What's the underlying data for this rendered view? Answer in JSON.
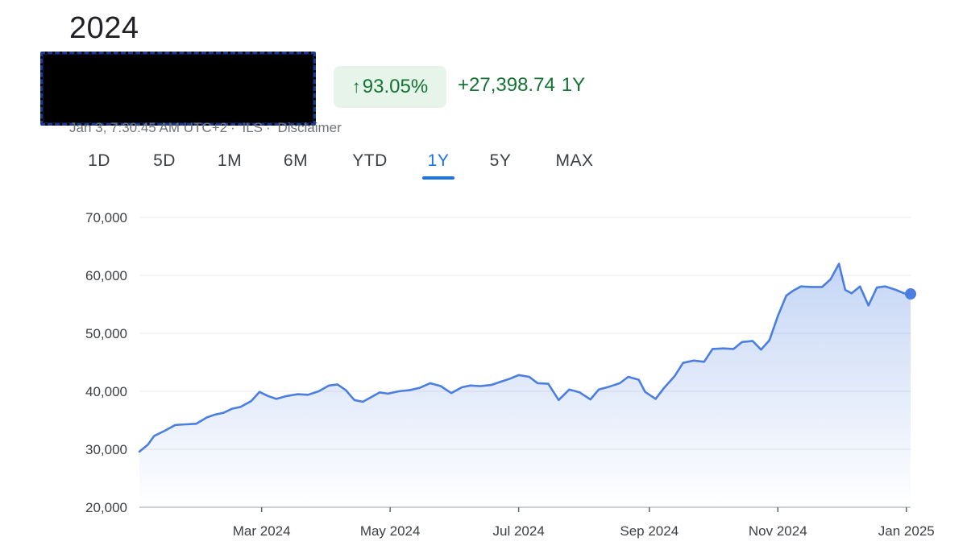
{
  "header": {
    "title": "2024",
    "percent_change": "93.05%",
    "arrow_icon": "arrow-up-icon",
    "absolute_change": "+27,398.74",
    "period_label": "1Y",
    "timestamp": "Jan 3, 7:30:45 AM UTC+2",
    "currency": "ILS",
    "disclaimer": "Disclaimer",
    "separator": "·"
  },
  "colors": {
    "accent": "#1a73e8",
    "line": "#4a7ee0",
    "positive": "#137333",
    "positive_bg": "#e6f4ea"
  },
  "tabs": [
    {
      "label": "1D",
      "active": false
    },
    {
      "label": "5D",
      "active": false
    },
    {
      "label": "1M",
      "active": false
    },
    {
      "label": "6M",
      "active": false
    },
    {
      "label": "YTD",
      "active": false
    },
    {
      "label": "1Y",
      "active": true
    },
    {
      "label": "5Y",
      "active": false
    },
    {
      "label": "MAX",
      "active": false
    }
  ],
  "chart_data": {
    "type": "area",
    "title": "",
    "xlabel": "",
    "ylabel": "",
    "ylim": [
      20000,
      70000
    ],
    "xlim": [
      "2024-01-03",
      "2025-01-03"
    ],
    "y_ticks": [
      "70,000",
      "60,000",
      "50,000",
      "40,000",
      "30,000",
      "20,000"
    ],
    "y_tick_values": [
      70000,
      60000,
      50000,
      40000,
      30000,
      20000
    ],
    "x_ticks": [
      {
        "label": "Mar 2024",
        "date": "2024-03-01"
      },
      {
        "label": "May 2024",
        "date": "2024-05-01"
      },
      {
        "label": "Jul 2024",
        "date": "2024-07-01"
      },
      {
        "label": "Sep 2024",
        "date": "2024-09-01"
      },
      {
        "label": "Nov 2024",
        "date": "2024-11-01"
      },
      {
        "label": "Jan 2025",
        "date": "2025-01-01"
      }
    ],
    "grid": true,
    "legend": "none",
    "series": [
      {
        "x": [
          "2024-01-03",
          "2024-01-07",
          "2024-01-10",
          "2024-01-15",
          "2024-01-20",
          "2024-01-25",
          "2024-01-30",
          "2024-02-04",
          "2024-02-08",
          "2024-02-12",
          "2024-02-16",
          "2024-02-20",
          "2024-02-25",
          "2024-02-29",
          "2024-03-04",
          "2024-03-08",
          "2024-03-13",
          "2024-03-18",
          "2024-03-23",
          "2024-03-28",
          "2024-04-02",
          "2024-04-06",
          "2024-04-10",
          "2024-04-14",
          "2024-04-18",
          "2024-04-22",
          "2024-04-26",
          "2024-04-30",
          "2024-05-05",
          "2024-05-10",
          "2024-05-15",
          "2024-05-20",
          "2024-05-25",
          "2024-05-30",
          "2024-06-04",
          "2024-06-08",
          "2024-06-13",
          "2024-06-18",
          "2024-06-22",
          "2024-06-27",
          "2024-07-01",
          "2024-07-06",
          "2024-07-10",
          "2024-07-15",
          "2024-07-20",
          "2024-07-25",
          "2024-07-30",
          "2024-08-04",
          "2024-08-08",
          "2024-08-13",
          "2024-08-18",
          "2024-08-22",
          "2024-08-27",
          "2024-08-30",
          "2024-09-04",
          "2024-09-08",
          "2024-09-13",
          "2024-09-17",
          "2024-09-22",
          "2024-09-27",
          "2024-10-01",
          "2024-10-06",
          "2024-10-11",
          "2024-10-15",
          "2024-10-20",
          "2024-10-24",
          "2024-10-28",
          "2024-11-01",
          "2024-11-05",
          "2024-11-08",
          "2024-11-12",
          "2024-11-17",
          "2024-11-22",
          "2024-11-26",
          "2024-11-30",
          "2024-12-03",
          "2024-12-06",
          "2024-12-10",
          "2024-12-14",
          "2024-12-18",
          "2024-12-22",
          "2024-12-27",
          "2024-12-31",
          "2025-01-03"
        ],
        "y": [
          29600,
          30800,
          32300,
          33200,
          34200,
          34300,
          34400,
          35500,
          36000,
          36300,
          37000,
          37300,
          38300,
          39900,
          39200,
          38700,
          39200,
          39500,
          39400,
          40000,
          41000,
          41200,
          40200,
          38500,
          38200,
          39000,
          39800,
          39600,
          40000,
          40200,
          40600,
          41400,
          40900,
          39700,
          40700,
          41000,
          40900,
          41100,
          41600,
          42200,
          42800,
          42500,
          41400,
          41300,
          38500,
          40300,
          39800,
          38600,
          40300,
          40800,
          41400,
          42500,
          42000,
          39900,
          38700,
          40600,
          42600,
          44900,
          45300,
          45100,
          47300,
          47400,
          47300,
          48500,
          48700,
          47200,
          48800,
          53000,
          56500,
          57300,
          58100,
          58000,
          58000,
          59300,
          62000,
          57500,
          56900,
          58100,
          54800,
          57900,
          58100,
          57500,
          56900,
          56800
        ]
      }
    ]
  }
}
